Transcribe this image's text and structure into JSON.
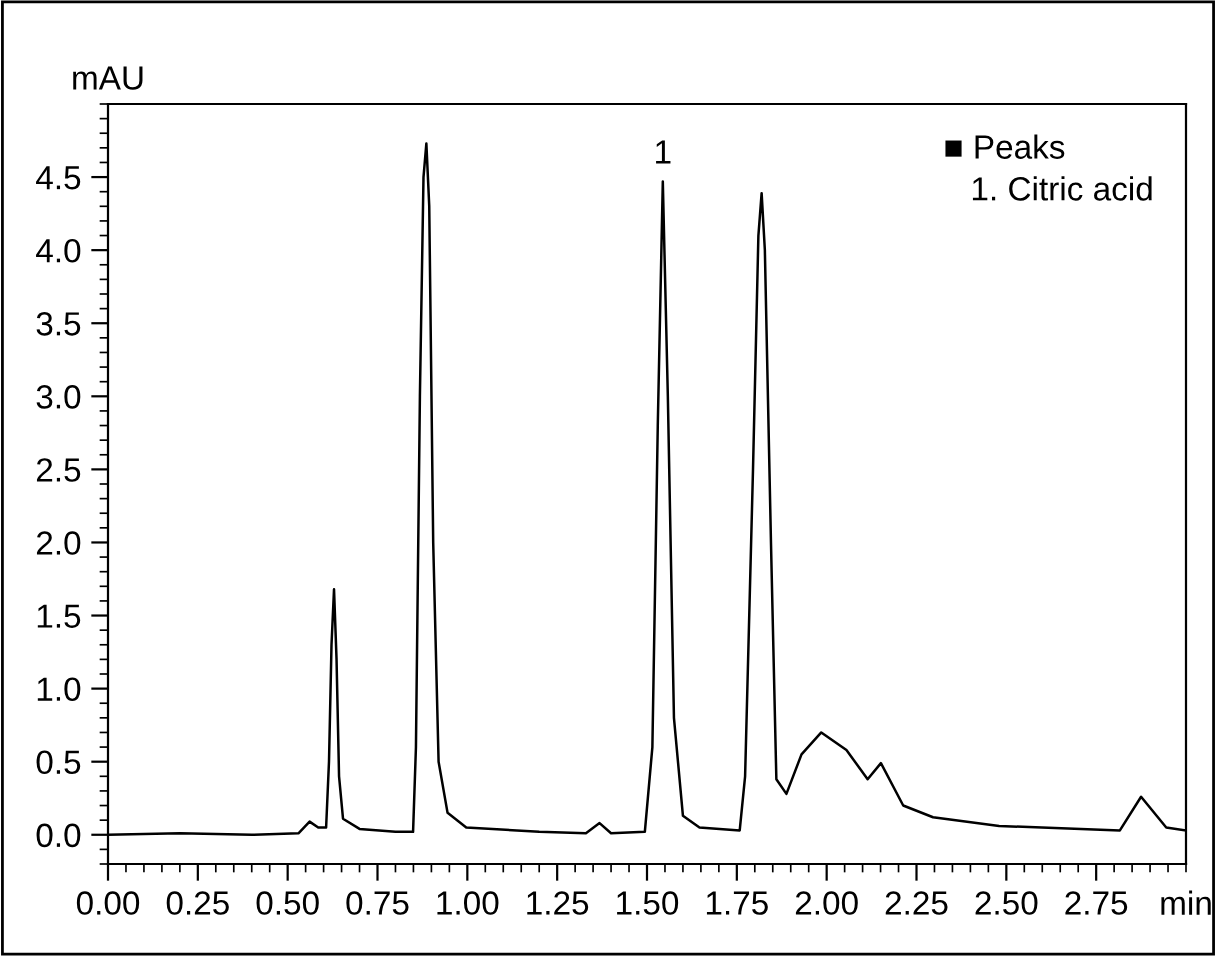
{
  "chart_data": {
    "type": "line",
    "ylabel": "mAU",
    "xlabel": "min",
    "xlim": [
      0,
      3.0
    ],
    "ylim": [
      -0.2,
      5.0
    ],
    "xticks": [
      {
        "value": 0,
        "label": "0.00"
      },
      {
        "value": 0.25,
        "label": "0.25"
      },
      {
        "value": 0.5,
        "label": "0.50"
      },
      {
        "value": 0.75,
        "label": "0.75"
      },
      {
        "value": 1.0,
        "label": "1.00"
      },
      {
        "value": 1.25,
        "label": "1.25"
      },
      {
        "value": 1.5,
        "label": "1.50"
      },
      {
        "value": 1.75,
        "label": "1.75"
      },
      {
        "value": 2.0,
        "label": "2.00"
      },
      {
        "value": 2.25,
        "label": "2.25"
      },
      {
        "value": 2.5,
        "label": "2.50"
      },
      {
        "value": 2.75,
        "label": "2.75"
      }
    ],
    "yticks": [
      {
        "value": 0,
        "label": "0.0"
      },
      0.5,
      {
        "value": 1,
        "label": "1.0"
      },
      1.5,
      {
        "value": 2,
        "label": "2.0"
      },
      2.5,
      {
        "value": 3,
        "label": "3.0"
      },
      3.5,
      {
        "value": 4,
        "label": "4.0"
      },
      4.5
    ],
    "grid": false,
    "legend": false,
    "marker": "none",
    "line_style": "solid",
    "series": [
      {
        "color": "#000000",
        "x": [
          0,
          0.2,
          0.4,
          0.53,
          0.561,
          0.585,
          0.607,
          0.615,
          0.622,
          0.629,
          0.636,
          0.643,
          0.654,
          0.7,
          0.8,
          0.849,
          0.857,
          0.868,
          0.878,
          0.886,
          0.894,
          0.905,
          0.92,
          0.945,
          0.997,
          1.2,
          1.33,
          1.368,
          1.4,
          1.494,
          1.515,
          1.53,
          1.544,
          1.558,
          1.575,
          1.6,
          1.646,
          1.758,
          1.773,
          1.795,
          1.81,
          1.819,
          1.828,
          1.845,
          1.86,
          1.888,
          1.93,
          1.985,
          2.055,
          2.114,
          2.151,
          2.213,
          2.296,
          2.48,
          2.816,
          2.875,
          2.945,
          2.998
        ],
        "values": [
          0.0,
          0.01,
          0.0,
          0.01,
          0.09,
          0.05,
          0.05,
          0.5,
          1.3,
          1.68,
          1.2,
          0.4,
          0.11,
          0.04,
          0.02,
          0.02,
          0.6,
          3.0,
          4.5,
          4.73,
          4.3,
          2.0,
          0.5,
          0.15,
          0.05,
          0.02,
          0.01,
          0.08,
          0.01,
          0.02,
          0.6,
          2.8,
          4.47,
          3.0,
          0.8,
          0.13,
          0.05,
          0.03,
          0.4,
          2.5,
          4.1,
          4.39,
          4.0,
          2.0,
          0.38,
          0.28,
          0.55,
          0.7,
          0.58,
          0.38,
          0.49,
          0.2,
          0.12,
          0.06,
          0.03,
          0.26,
          0.05,
          0.03
        ]
      }
    ],
    "annotations": [
      {
        "text": "1",
        "x": 1.544,
        "y": 4.47
      },
      "■ Peaks",
      "1. Citric acid"
    ]
  }
}
